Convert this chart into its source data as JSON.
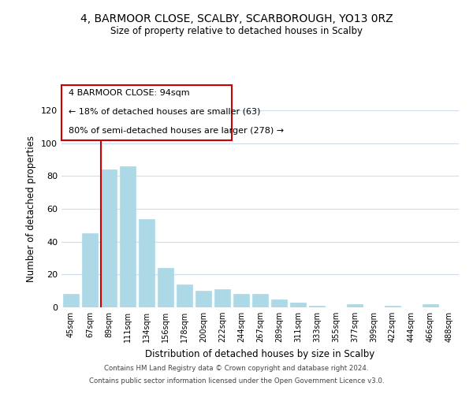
{
  "title": "4, BARMOOR CLOSE, SCALBY, SCARBOROUGH, YO13 0RZ",
  "subtitle": "Size of property relative to detached houses in Scalby",
  "xlabel": "Distribution of detached houses by size in Scalby",
  "ylabel": "Number of detached properties",
  "bar_labels": [
    "45sqm",
    "67sqm",
    "89sqm",
    "111sqm",
    "134sqm",
    "156sqm",
    "178sqm",
    "200sqm",
    "222sqm",
    "244sqm",
    "267sqm",
    "289sqm",
    "311sqm",
    "333sqm",
    "355sqm",
    "377sqm",
    "399sqm",
    "422sqm",
    "444sqm",
    "466sqm",
    "488sqm"
  ],
  "bar_values": [
    8,
    45,
    84,
    86,
    54,
    24,
    14,
    10,
    11,
    8,
    8,
    5,
    3,
    1,
    0,
    2,
    0,
    1,
    0,
    2,
    0
  ],
  "bar_color": "#add8e6",
  "bar_edge_color": "#add8e6",
  "vline_color": "#cc0000",
  "ann_line1": "4 BARMOOR CLOSE: 94sqm",
  "ann_line2": "← 18% of detached houses are smaller (63)",
  "ann_line3": "80% of semi-detached houses are larger (278) →",
  "ylim": [
    0,
    120
  ],
  "yticks": [
    0,
    20,
    40,
    60,
    80,
    100,
    120
  ],
  "footer_line1": "Contains HM Land Registry data © Crown copyright and database right 2024.",
  "footer_line2": "Contains public sector information licensed under the Open Government Licence v3.0.",
  "background_color": "#ffffff",
  "grid_color": "#ccddf0"
}
